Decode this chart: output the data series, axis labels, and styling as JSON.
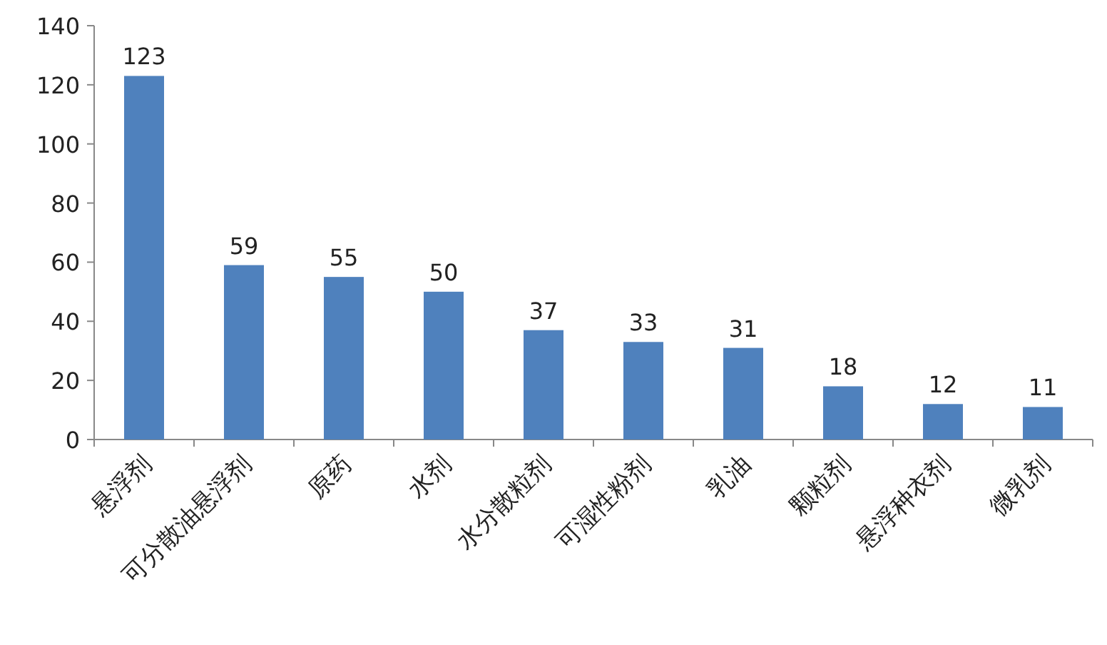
{
  "chart_data": {
    "type": "bar",
    "categories": [
      "悬浮剂",
      "可分散油悬浮剂",
      "原药",
      "水剂",
      "水分散粒剂",
      "可湿性粉剂",
      "乳油",
      "颗粒剂",
      "悬浮种衣剂",
      "微乳剂"
    ],
    "values": [
      123,
      59,
      55,
      50,
      37,
      33,
      31,
      18,
      12,
      11
    ],
    "color": "#4f81bd",
    "ylim": [
      0,
      140
    ],
    "yticks": [
      0,
      20,
      40,
      60,
      80,
      100,
      120,
      140
    ],
    "data_labels": true
  }
}
